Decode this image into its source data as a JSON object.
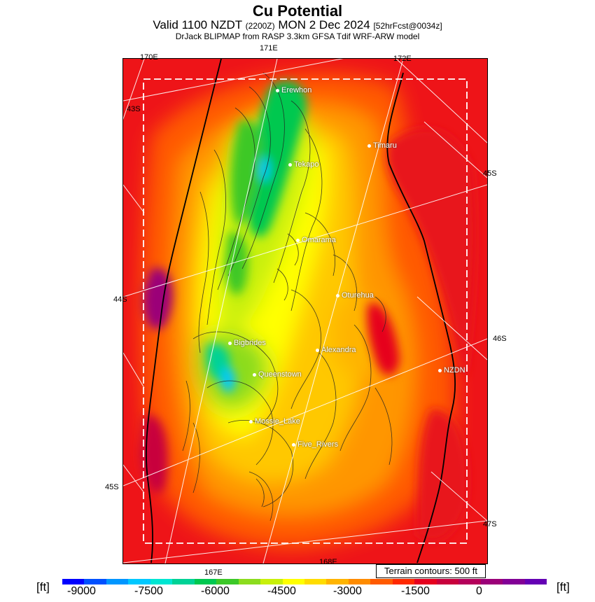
{
  "header": {
    "title": "Cu Potential",
    "valid_prefix": "Valid 1100 NZDT",
    "valid_utc": "(2200Z)",
    "valid_date": "MON 2 Dec 2024",
    "forecast": "[52hrFcst@0034z]",
    "subtitle": "DrJack BLIPMAP from RASP 3.3km GFSA Tdif WRF-ARW model"
  },
  "grid_labels": {
    "lon_170": "170E",
    "lon_171": "171E",
    "lon_172": "172E",
    "lon_167": "167E",
    "lon_168": "168E",
    "lat_43": "43S",
    "lat_44": "44S",
    "lat_45_left": "45S",
    "lat_45_right": "45S",
    "lat_46": "46S",
    "lat_47": "47S"
  },
  "towns": [
    {
      "name": "Erewhon"
    },
    {
      "name": "Timaru"
    },
    {
      "name": "Tekapo"
    },
    {
      "name": "Omarama"
    },
    {
      "name": "Oturehua"
    },
    {
      "name": "Bigbrides"
    },
    {
      "name": "Alexandra"
    },
    {
      "name": "NZDN"
    },
    {
      "name": "Queenstown"
    },
    {
      "name": "Mossie_Lake"
    },
    {
      "name": "Five_Rivers"
    }
  ],
  "terrain_note": "Terrain contours: 500 ft",
  "colorbar": {
    "unit_left": "[ft]",
    "unit_right": "[ft]",
    "ticks": [
      "-9000",
      "-7500",
      "-6000",
      "-4500",
      "-3000",
      "-1500",
      "0"
    ],
    "colors": [
      "#0000ff",
      "#0050ff",
      "#0096ff",
      "#00c8ff",
      "#00e6d2",
      "#00d296",
      "#00c850",
      "#3cc828",
      "#8cdc1e",
      "#c8f00a",
      "#ffff00",
      "#ffdc00",
      "#ffb400",
      "#ff8c00",
      "#ff5a00",
      "#ff2800",
      "#e6001e",
      "#c8003c",
      "#b4005a",
      "#9b0078",
      "#820096",
      "#6400b4"
    ]
  }
}
